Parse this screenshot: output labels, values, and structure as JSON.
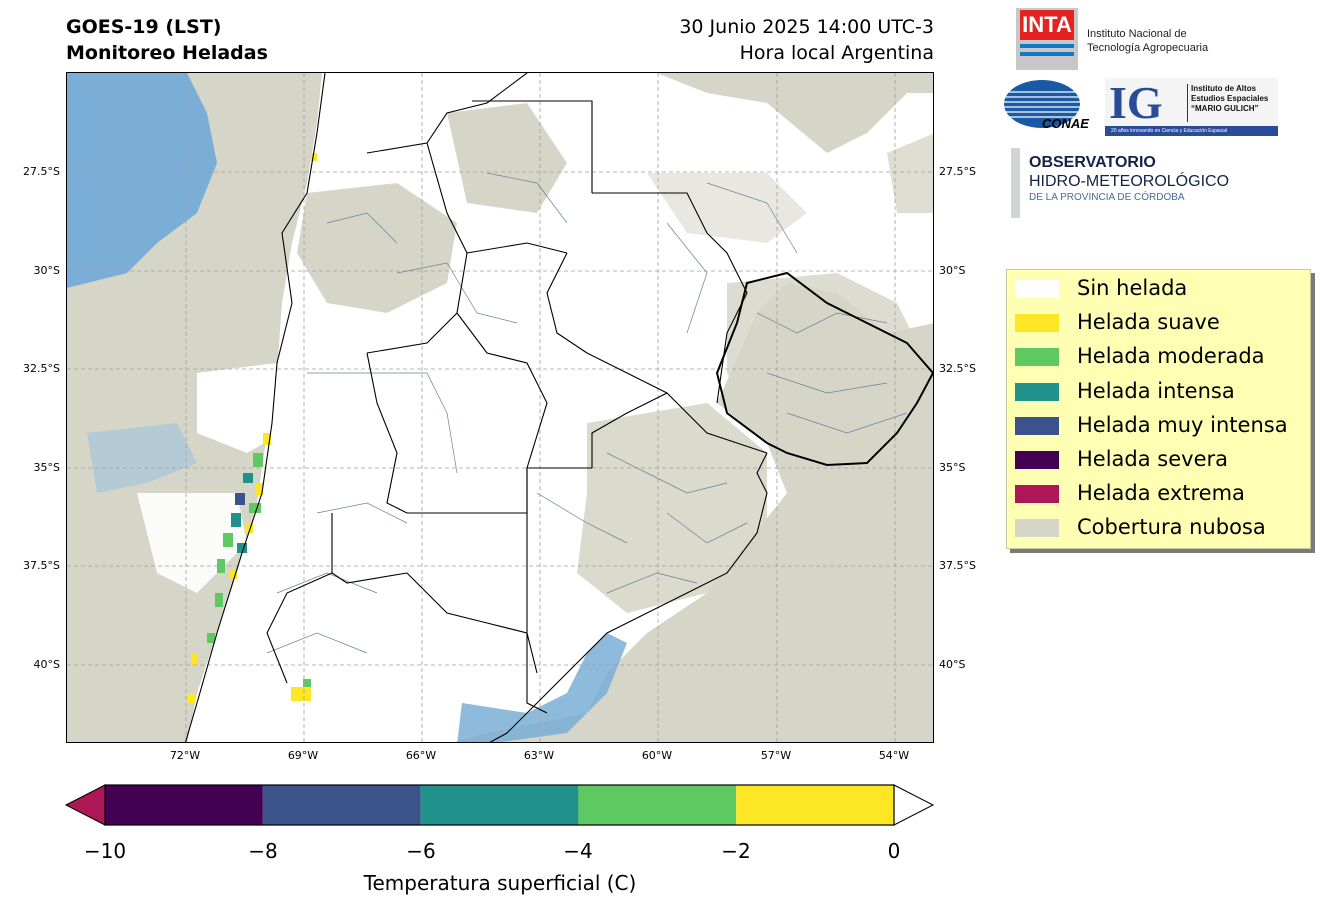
{
  "title": {
    "line1": "GOES-19 (LST)",
    "line2": "Monitoreo Heladas"
  },
  "datetime": {
    "line1": "30 Junio 2025 14:00 UTC-3",
    "line2": "Hora local Argentina"
  },
  "latitude_labels": [
    "27.5°S",
    "30°S",
    "32.5°S",
    "35°S",
    "37.5°S",
    "40°S"
  ],
  "longitude_labels": [
    "72°W",
    "69°W",
    "66°W",
    "63°W",
    "60°W",
    "57°W",
    "54°W"
  ],
  "colorbar": {
    "label": "Temperatura superficial (C)",
    "ticks": [
      "−10",
      "−8",
      "−6",
      "−4",
      "−2",
      "0"
    ],
    "segments": [
      {
        "from": -10,
        "to": -8,
        "color": "#440154"
      },
      {
        "from": -8,
        "to": -6,
        "color": "#3b528b"
      },
      {
        "from": -6,
        "to": -4,
        "color": "#21918c"
      },
      {
        "from": -4,
        "to": -2,
        "color": "#5ec962"
      },
      {
        "from": -2,
        "to": 0,
        "color": "#fde725"
      }
    ],
    "under_color": "#ad1757",
    "over_color": "#ffffff"
  },
  "legend": [
    {
      "label": "Sin helada",
      "color": "#ffffff"
    },
    {
      "label": "Helada suave",
      "color": "#fde725"
    },
    {
      "label": "Helada moderada",
      "color": "#5ec962"
    },
    {
      "label": "Helada intensa",
      "color": "#21918c"
    },
    {
      "label": "Helada muy intensa",
      "color": "#3b528b"
    },
    {
      "label": "Helada severa",
      "color": "#440154"
    },
    {
      "label": "Helada extrema",
      "color": "#ad1757"
    },
    {
      "label": "Cobertura nubosa",
      "color": "#d6d6c8"
    }
  ],
  "logos": {
    "inta": {
      "mark": "INTA",
      "line1": "Instituto Nacional de",
      "line2": "Tecnología Agropecuaria"
    },
    "conae": {
      "mark": "CONAE"
    },
    "ig": {
      "mark": "IG",
      "line1": "Instituto de Altos",
      "line2": "Estudios Espaciales",
      "line3": "“MARIO GULICH”",
      "tagline": "20 años innovando en Ciencia y Educación Espacial"
    },
    "observatorio": {
      "line1": "OBSERVATORIO",
      "line2": "HIDRO-METEOROLÓGICO",
      "line3": "DE LA PROVINCIA DE CÓRDOBA"
    }
  }
}
